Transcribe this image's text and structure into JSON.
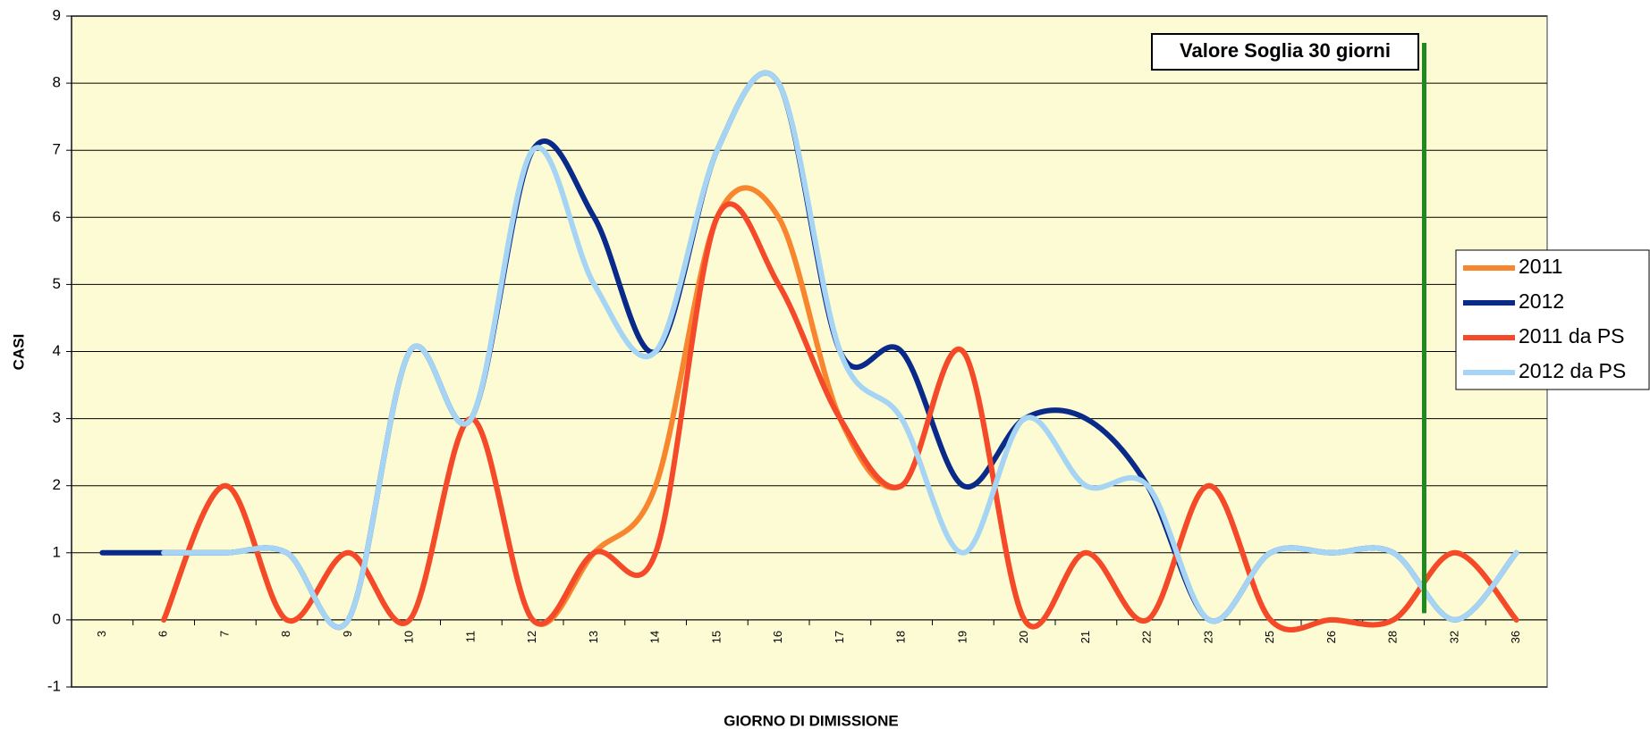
{
  "chart_data": {
    "type": "line",
    "xlabel": "GIORNO DI DIMISSIONE",
    "ylabel": "CASI",
    "annotation": "Valore Soglia 30 giorni",
    "categories": [
      "3",
      "6",
      "7",
      "8",
      "9",
      "10",
      "11",
      "12",
      "13",
      "14",
      "15",
      "16",
      "17",
      "18",
      "19",
      "20",
      "21",
      "22",
      "23",
      "25",
      "26",
      "28",
      "32",
      "36"
    ],
    "series": [
      {
        "name": "2011",
        "color": "#f7862f",
        "values": [
          null,
          0,
          2,
          0,
          1,
          0,
          3,
          0,
          1,
          2,
          6,
          6,
          3,
          2,
          4,
          0,
          1,
          0,
          2,
          0,
          0,
          0,
          1,
          0
        ]
      },
      {
        "name": "2012",
        "color": "#0a2a8a",
        "values": [
          1,
          1,
          1,
          1,
          0,
          4,
          3,
          7,
          6,
          4,
          7,
          8,
          4,
          4,
          2,
          3,
          3,
          2,
          0,
          1,
          1,
          1,
          0,
          1
        ]
      },
      {
        "name": "2011 da PS",
        "color": "#f44a2a",
        "values": [
          null,
          0,
          2,
          0,
          1,
          0,
          3,
          0,
          1,
          1,
          6,
          5,
          3,
          2,
          4,
          0,
          1,
          0,
          2,
          0,
          0,
          0,
          1,
          0
        ]
      },
      {
        "name": "2012 da PS",
        "color": "#a6d4f4",
        "values": [
          null,
          1,
          1,
          1,
          0,
          4,
          3,
          7,
          5,
          4,
          7,
          8,
          4,
          3,
          1,
          3,
          2,
          2,
          0,
          1,
          1,
          1,
          0,
          1
        ]
      }
    ],
    "ylim": [
      -1,
      9
    ],
    "yticks": [
      -1,
      0,
      1,
      2,
      3,
      4,
      5,
      6,
      7,
      8,
      9
    ],
    "grid": true,
    "legend": "right"
  }
}
